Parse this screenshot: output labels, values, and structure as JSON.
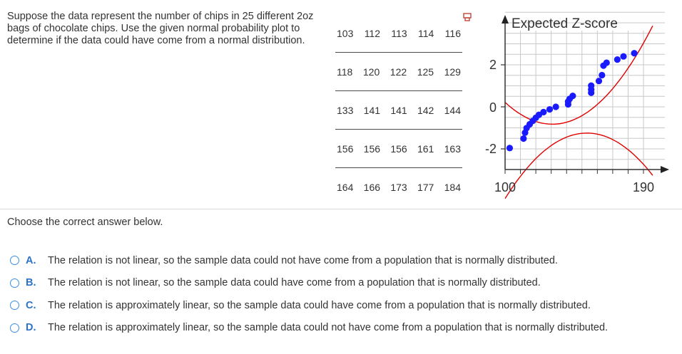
{
  "question": {
    "text": "Suppose the data represent the number  of chips in 25 different 2oz bags of chocolate chips. Use the given normal probability plot to determine if the data could have come from a normal distribution."
  },
  "data_table": {
    "rows": [
      [
        "103",
        "112",
        "113",
        "114",
        "116"
      ],
      [
        "118",
        "120",
        "122",
        "125",
        "129"
      ],
      [
        "133",
        "141",
        "141",
        "142",
        "144"
      ],
      [
        "156",
        "156",
        "156",
        "161",
        "163"
      ],
      [
        "164",
        "166",
        "173",
        "177",
        "184"
      ]
    ]
  },
  "chart_data": {
    "type": "scatter",
    "ylabel": "Expected Z-score",
    "xlim": [
      100,
      190
    ],
    "ylim": [
      -2,
      2
    ],
    "x_tick_labels": [
      "100",
      "190"
    ],
    "y_tick_labels": [
      "2",
      "0",
      "-2"
    ],
    "grid": true,
    "point_color": "#1a1aff",
    "band_color": "#e00000",
    "points": [
      {
        "x": 103,
        "y": -1.96
      },
      {
        "x": 112,
        "y": -1.51
      },
      {
        "x": 113,
        "y": -1.23
      },
      {
        "x": 114,
        "y": -1.01
      },
      {
        "x": 116,
        "y": -0.83
      },
      {
        "x": 118,
        "y": -0.67
      },
      {
        "x": 120,
        "y": -0.52
      },
      {
        "x": 122,
        "y": -0.38
      },
      {
        "x": 125,
        "y": -0.25
      },
      {
        "x": 129,
        "y": -0.12
      },
      {
        "x": 133,
        "y": 0.0
      },
      {
        "x": 141,
        "y": 0.12
      },
      {
        "x": 141,
        "y": 0.25
      },
      {
        "x": 142,
        "y": 0.38
      },
      {
        "x": 144,
        "y": 0.52
      },
      {
        "x": 156,
        "y": 0.67
      },
      {
        "x": 156,
        "y": 0.83
      },
      {
        "x": 156,
        "y": 1.01
      },
      {
        "x": 161,
        "y": 1.23
      },
      {
        "x": 163,
        "y": 1.51
      },
      {
        "x": 164,
        "y": 1.96
      },
      {
        "x": 166,
        "y": 2.1
      },
      {
        "x": 173,
        "y": 2.25
      },
      {
        "x": 177,
        "y": 2.4
      },
      {
        "x": 184,
        "y": 2.55
      }
    ]
  },
  "prompt": "Choose the correct answer below.",
  "choices": [
    {
      "letter": "A.",
      "text": "The relation is not linear, so the sample data could not have come from a population that is normally distributed."
    },
    {
      "letter": "B.",
      "text": "The relation is not linear, so the sample data could have come from a population that is normally distributed."
    },
    {
      "letter": "C.",
      "text": "The relation is approximately linear, so the sample data could have come from a population that is normally distributed."
    },
    {
      "letter": "D.",
      "text": "The relation is approximately linear, so the sample data could not have come from a population that is normally distributed."
    }
  ]
}
